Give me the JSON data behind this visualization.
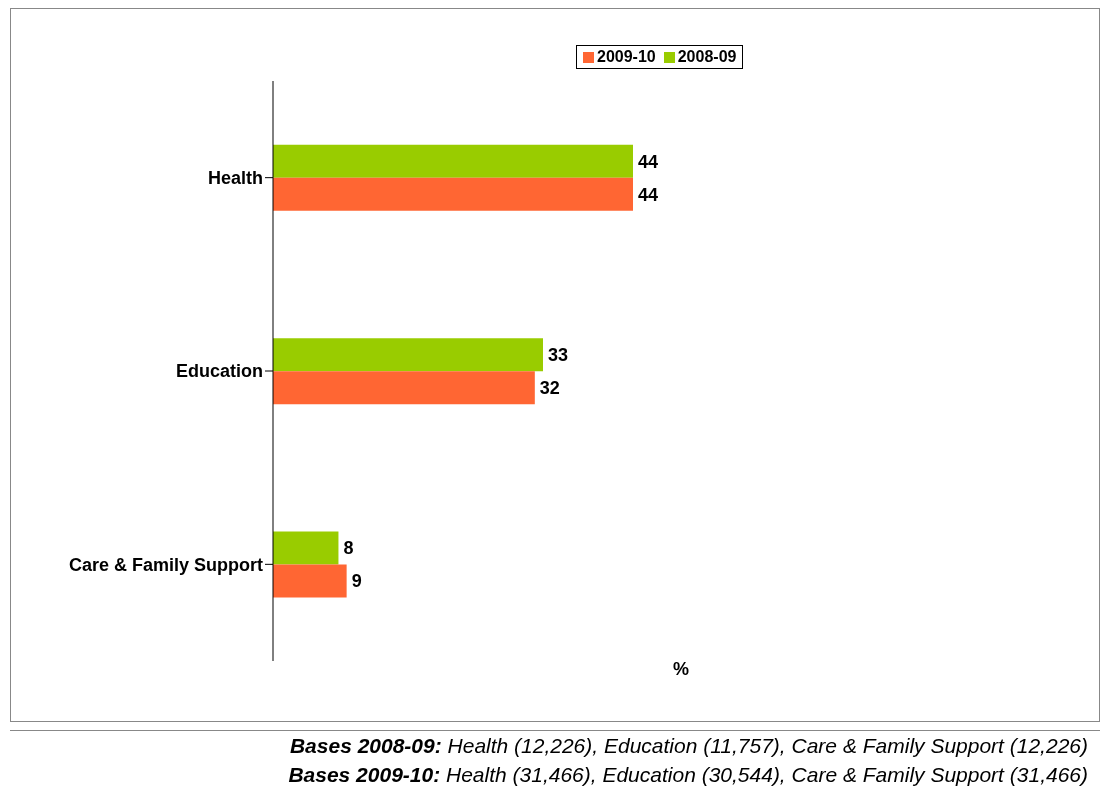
{
  "chart_data": {
    "type": "bar",
    "orientation": "horizontal",
    "categories": [
      "Health",
      "Education",
      "Care & Family Support"
    ],
    "series": [
      {
        "name": "2009-10",
        "color": "#ff6633",
        "values": [
          44,
          32,
          9
        ]
      },
      {
        "name": "2008-09",
        "color": "#99cc00",
        "values": [
          44,
          33,
          8
        ]
      }
    ],
    "xlabel": "%",
    "data_labels": true,
    "legend": "top",
    "tick_labels": "y",
    "grid": false,
    "annotations": [
      "Bases 2008-09:  Health (12,226), Education (11,757), Care & Family Support (12,226)",
      "Bases 2009-10:  Health (31,466), Education (30,544), Care & Family Support (31,466)"
    ]
  }
}
